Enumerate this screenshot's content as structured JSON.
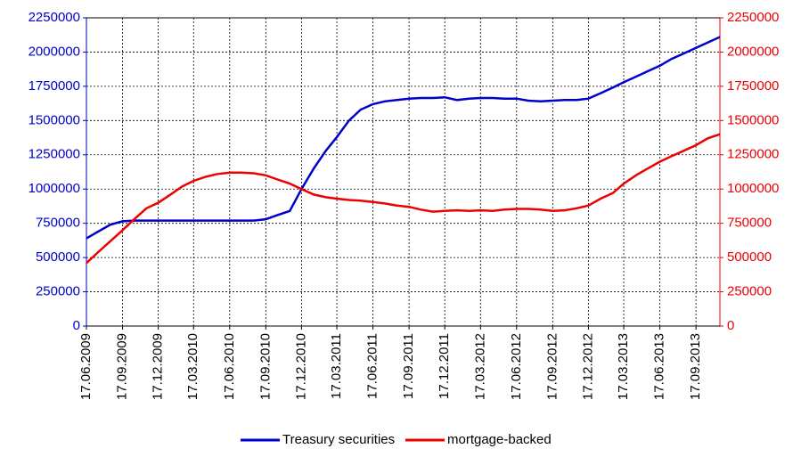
{
  "chart_data": {
    "type": "line",
    "x": [
      "17.06.2009",
      "17.07.2009",
      "17.08.2009",
      "17.09.2009",
      "17.10.2009",
      "17.11.2009",
      "17.12.2009",
      "17.01.2010",
      "17.02.2010",
      "17.03.2010",
      "17.04.2010",
      "17.05.2010",
      "17.06.2010",
      "17.07.2010",
      "17.08.2010",
      "17.09.2010",
      "17.10.2010",
      "17.11.2010",
      "17.12.2010",
      "17.01.2011",
      "17.02.2011",
      "17.03.2011",
      "17.04.2011",
      "17.05.2011",
      "17.06.2011",
      "17.07.2011",
      "17.08.2011",
      "17.09.2011",
      "17.10.2011",
      "17.11.2011",
      "17.12.2011",
      "17.01.2012",
      "17.02.2012",
      "17.03.2012",
      "17.04.2012",
      "17.05.2012",
      "17.06.2012",
      "17.07.2012",
      "17.08.2012",
      "17.09.2012",
      "17.10.2012",
      "17.11.2012",
      "17.12.2012",
      "17.01.2013",
      "17.02.2013",
      "17.03.2013",
      "17.04.2013",
      "17.05.2013",
      "17.06.2013",
      "17.07.2013",
      "17.08.2013",
      "17.09.2013",
      "17.10.2013",
      "17.11.2013"
    ],
    "series": [
      {
        "name": "Treasury securities",
        "color": "#0000cc",
        "values": [
          640000,
          690000,
          740000,
          765000,
          770000,
          770000,
          770000,
          770000,
          770000,
          770000,
          770000,
          770000,
          770000,
          770000,
          770000,
          780000,
          810000,
          840000,
          1000000,
          1150000,
          1280000,
          1380000,
          1500000,
          1580000,
          1620000,
          1640000,
          1650000,
          1660000,
          1665000,
          1665000,
          1670000,
          1650000,
          1660000,
          1665000,
          1665000,
          1660000,
          1660000,
          1645000,
          1640000,
          1645000,
          1650000,
          1650000,
          1660000,
          1700000,
          1740000,
          1780000,
          1820000,
          1860000,
          1900000,
          1950000,
          1990000,
          2030000,
          2070000,
          2110000
        ]
      },
      {
        "name": "mortgage-backed",
        "color": "#ee0000",
        "axis": "y2",
        "values": [
          460000,
          540000,
          620000,
          700000,
          780000,
          860000,
          900000,
          960000,
          1020000,
          1060000,
          1090000,
          1110000,
          1120000,
          1120000,
          1115000,
          1100000,
          1070000,
          1040000,
          1000000,
          960000,
          940000,
          930000,
          920000,
          915000,
          905000,
          895000,
          880000,
          870000,
          850000,
          835000,
          840000,
          845000,
          840000,
          845000,
          840000,
          850000,
          855000,
          855000,
          850000,
          840000,
          845000,
          860000,
          880000,
          930000,
          970000,
          1040000,
          1100000,
          1150000,
          1200000,
          1240000,
          1280000,
          1320000,
          1370000,
          1400000
        ]
      }
    ],
    "xlim": [
      "17.06.2009",
      "17.11.2013"
    ],
    "xticks": [
      "17.06.2009",
      "17.09.2009",
      "17.12.2009",
      "17.03.2010",
      "17.06.2010",
      "17.09.2010",
      "17.12.2010",
      "17.03.2011",
      "17.06.2011",
      "17.09.2011",
      "17.12.2011",
      "17.03.2012",
      "17.06.2012",
      "17.09.2012",
      "17.12.2012",
      "17.03.2013",
      "17.06.2013",
      "17.09.2013"
    ],
    "ylim": [
      0,
      2250000
    ],
    "yticks": [
      0,
      250000,
      500000,
      750000,
      1000000,
      1250000,
      1500000,
      1750000,
      2000000,
      2250000
    ],
    "y2lim": [
      0,
      2250000
    ],
    "y2ticks": [
      0,
      250000,
      500000,
      750000,
      1000000,
      1250000,
      1500000,
      1750000,
      2000000,
      2250000
    ],
    "grid": true,
    "legend": "bottom"
  }
}
